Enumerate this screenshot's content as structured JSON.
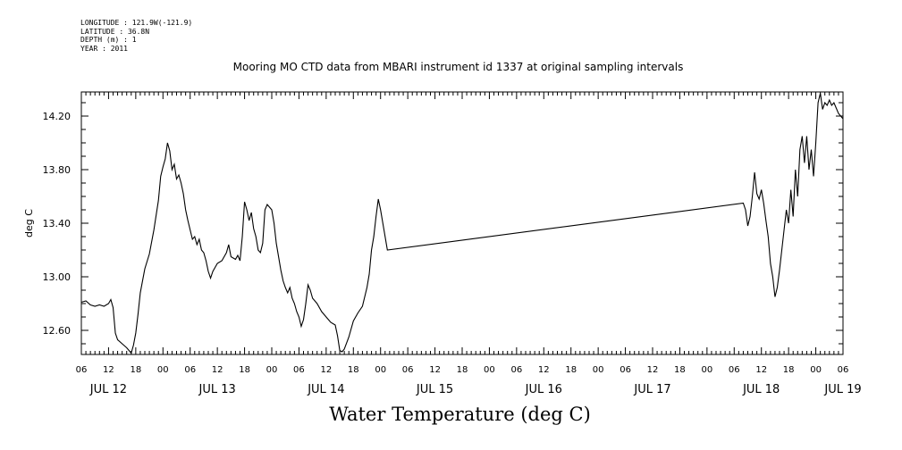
{
  "meta_lines": [
    "LONGITUDE : 121.9W(-121.9)",
    "LATITUDE : 36.8N",
    "DEPTH (m) : 1",
    "YEAR : 2011"
  ],
  "chart_data": {
    "type": "line",
    "title": "Mooring MO CTD data from MBARI instrument id 1337 at original sampling intervals",
    "xlabel": "Water Temperature (deg C)",
    "ylabel": "deg C",
    "x_range": [
      "2011-07-12T06:00",
      "2011-07-19T06:00"
    ],
    "ylim": [
      12.42,
      14.38
    ],
    "y_ticks": [
      12.6,
      13.0,
      13.4,
      13.8,
      14.2
    ],
    "y_tick_labels": [
      "12.60",
      "13.00",
      "13.40",
      "13.80",
      "14.20"
    ],
    "x_hour_ticks": [
      "2011-07-12T06:00",
      "2011-07-12T12:00",
      "2011-07-12T18:00",
      "2011-07-13T00:00",
      "2011-07-13T06:00",
      "2011-07-13T12:00",
      "2011-07-13T18:00",
      "2011-07-14T00:00",
      "2011-07-14T06:00",
      "2011-07-14T12:00",
      "2011-07-14T18:00",
      "2011-07-15T00:00",
      "2011-07-15T06:00",
      "2011-07-15T12:00",
      "2011-07-15T18:00",
      "2011-07-16T00:00",
      "2011-07-16T06:00",
      "2011-07-16T12:00",
      "2011-07-16T18:00",
      "2011-07-17T00:00",
      "2011-07-17T06:00",
      "2011-07-17T12:00",
      "2011-07-17T18:00",
      "2011-07-18T00:00",
      "2011-07-18T06:00",
      "2011-07-18T12:00",
      "2011-07-18T18:00",
      "2011-07-19T00:00",
      "2011-07-19T06:00"
    ],
    "x_hour_labels": [
      "06",
      "12",
      "18",
      "00",
      "06",
      "12",
      "18",
      "00",
      "06",
      "12",
      "18",
      "00",
      "06",
      "12",
      "18",
      "00",
      "06",
      "12",
      "18",
      "00",
      "06",
      "12",
      "18",
      "00",
      "06",
      "12",
      "18",
      "00",
      "06"
    ],
    "x_day_labels": [
      "JUL 12",
      "JUL 13",
      "JUL 14",
      "JUL 15",
      "JUL 16",
      "JUL 17",
      "JUL 18",
      "JUL 19"
    ],
    "x_day_label_times": [
      "2011-07-12T12:00",
      "2011-07-13T12:00",
      "2011-07-14T12:00",
      "2011-07-15T12:00",
      "2011-07-16T12:00",
      "2011-07-17T12:00",
      "2011-07-18T12:00",
      "2011-07-19T06:00"
    ],
    "series": [
      {
        "color": "#000000",
        "points": [
          [
            "2011-07-12T06:00",
            12.81
          ],
          [
            "2011-07-12T07:00",
            12.82
          ],
          [
            "2011-07-12T08:00",
            12.79
          ],
          [
            "2011-07-12T09:00",
            12.78
          ],
          [
            "2011-07-12T10:00",
            12.79
          ],
          [
            "2011-07-12T11:00",
            12.78
          ],
          [
            "2011-07-12T12:00",
            12.8
          ],
          [
            "2011-07-12T12:30",
            12.83
          ],
          [
            "2011-07-12T13:00",
            12.77
          ],
          [
            "2011-07-12T13:30",
            12.58
          ],
          [
            "2011-07-12T14:00",
            12.53
          ],
          [
            "2011-07-12T15:00",
            12.5
          ],
          [
            "2011-07-12T16:00",
            12.47
          ],
          [
            "2011-07-12T16:30",
            12.45
          ],
          [
            "2011-07-12T17:00",
            12.43
          ],
          [
            "2011-07-12T17:30",
            12.49
          ],
          [
            "2011-07-12T18:00",
            12.58
          ],
          [
            "2011-07-12T18:30",
            12.72
          ],
          [
            "2011-07-12T19:00",
            12.88
          ],
          [
            "2011-07-12T19:30",
            12.97
          ],
          [
            "2011-07-12T20:00",
            13.06
          ],
          [
            "2011-07-12T21:00",
            13.17
          ],
          [
            "2011-07-12T22:00",
            13.35
          ],
          [
            "2011-07-12T23:00",
            13.57
          ],
          [
            "2011-07-12T23:30",
            13.75
          ],
          [
            "2011-07-13T00:00",
            13.82
          ],
          [
            "2011-07-13T00:30",
            13.88
          ],
          [
            "2011-07-13T01:00",
            14.0
          ],
          [
            "2011-07-13T01:30",
            13.94
          ],
          [
            "2011-07-13T02:00",
            13.8
          ],
          [
            "2011-07-13T02:30",
            13.84
          ],
          [
            "2011-07-13T03:00",
            13.73
          ],
          [
            "2011-07-13T03:30",
            13.76
          ],
          [
            "2011-07-13T04:00",
            13.7
          ],
          [
            "2011-07-13T04:30",
            13.62
          ],
          [
            "2011-07-13T05:00",
            13.5
          ],
          [
            "2011-07-13T05:30",
            13.42
          ],
          [
            "2011-07-13T06:00",
            13.35
          ],
          [
            "2011-07-13T06:30",
            13.28
          ],
          [
            "2011-07-13T07:00",
            13.3
          ],
          [
            "2011-07-13T07:30",
            13.24
          ],
          [
            "2011-07-13T08:00",
            13.28
          ],
          [
            "2011-07-13T08:30",
            13.2
          ],
          [
            "2011-07-13T09:00",
            13.18
          ],
          [
            "2011-07-13T09:30",
            13.12
          ],
          [
            "2011-07-13T10:00",
            13.04
          ],
          [
            "2011-07-13T10:30",
            12.99
          ],
          [
            "2011-07-13T11:00",
            13.04
          ],
          [
            "2011-07-13T12:00",
            13.1
          ],
          [
            "2011-07-13T13:00",
            13.12
          ],
          [
            "2011-07-13T14:00",
            13.18
          ],
          [
            "2011-07-13T14:30",
            13.24
          ],
          [
            "2011-07-13T15:00",
            13.15
          ],
          [
            "2011-07-13T16:00",
            13.13
          ],
          [
            "2011-07-13T16:30",
            13.16
          ],
          [
            "2011-07-13T17:00",
            13.12
          ],
          [
            "2011-07-13T17:30",
            13.3
          ],
          [
            "2011-07-13T18:00",
            13.56
          ],
          [
            "2011-07-13T18:30",
            13.5
          ],
          [
            "2011-07-13T19:00",
            13.42
          ],
          [
            "2011-07-13T19:30",
            13.48
          ],
          [
            "2011-07-13T20:00",
            13.36
          ],
          [
            "2011-07-13T20:30",
            13.3
          ],
          [
            "2011-07-13T21:00",
            13.2
          ],
          [
            "2011-07-13T21:30",
            13.18
          ],
          [
            "2011-07-13T22:00",
            13.25
          ],
          [
            "2011-07-13T22:30",
            13.5
          ],
          [
            "2011-07-13T23:00",
            13.54
          ],
          [
            "2011-07-13T23:30",
            13.52
          ],
          [
            "2011-07-14T00:00",
            13.5
          ],
          [
            "2011-07-14T00:30",
            13.4
          ],
          [
            "2011-07-14T01:00",
            13.25
          ],
          [
            "2011-07-14T01:30",
            13.15
          ],
          [
            "2011-07-14T02:00",
            13.05
          ],
          [
            "2011-07-14T02:30",
            12.97
          ],
          [
            "2011-07-14T03:00",
            12.92
          ],
          [
            "2011-07-14T03:30",
            12.88
          ],
          [
            "2011-07-14T04:00",
            12.92
          ],
          [
            "2011-07-14T04:30",
            12.84
          ],
          [
            "2011-07-14T05:00",
            12.8
          ],
          [
            "2011-07-14T05:30",
            12.74
          ],
          [
            "2011-07-14T06:00",
            12.7
          ],
          [
            "2011-07-14T06:30",
            12.63
          ],
          [
            "2011-07-14T07:00",
            12.68
          ],
          [
            "2011-07-14T07:30",
            12.8
          ],
          [
            "2011-07-14T08:00",
            12.94
          ],
          [
            "2011-07-14T08:30",
            12.9
          ],
          [
            "2011-07-14T09:00",
            12.84
          ],
          [
            "2011-07-14T10:00",
            12.8
          ],
          [
            "2011-07-14T11:00",
            12.74
          ],
          [
            "2011-07-14T12:00",
            12.7
          ],
          [
            "2011-07-14T13:00",
            12.66
          ],
          [
            "2011-07-14T14:00",
            12.64
          ],
          [
            "2011-07-14T14:30",
            12.56
          ],
          [
            "2011-07-14T15:00",
            12.45
          ],
          [
            "2011-07-14T15:30",
            12.44
          ],
          [
            "2011-07-14T16:00",
            12.46
          ],
          [
            "2011-07-14T17:00",
            12.55
          ],
          [
            "2011-07-14T18:00",
            12.67
          ],
          [
            "2011-07-14T19:00",
            12.73
          ],
          [
            "2011-07-14T20:00",
            12.78
          ],
          [
            "2011-07-14T21:00",
            12.92
          ],
          [
            "2011-07-14T21:30",
            13.02
          ],
          [
            "2011-07-14T22:00",
            13.2
          ],
          [
            "2011-07-14T22:30",
            13.3
          ],
          [
            "2011-07-14T23:00",
            13.45
          ],
          [
            "2011-07-14T23:30",
            13.58
          ],
          [
            "2011-07-15T00:00",
            13.5
          ],
          [
            "2011-07-15T00:30",
            13.4
          ],
          [
            "2011-07-15T01:00",
            13.3
          ],
          [
            "2011-07-15T01:30",
            13.2
          ],
          [
            "2011-07-18T08:00",
            13.55
          ],
          [
            "2011-07-18T08:30",
            13.5
          ],
          [
            "2011-07-18T09:00",
            13.38
          ],
          [
            "2011-07-18T09:30",
            13.45
          ],
          [
            "2011-07-18T10:00",
            13.6
          ],
          [
            "2011-07-18T10:30",
            13.78
          ],
          [
            "2011-07-18T11:00",
            13.62
          ],
          [
            "2011-07-18T11:30",
            13.58
          ],
          [
            "2011-07-18T12:00",
            13.65
          ],
          [
            "2011-07-18T12:30",
            13.55
          ],
          [
            "2011-07-18T13:00",
            13.42
          ],
          [
            "2011-07-18T13:30",
            13.3
          ],
          [
            "2011-07-18T14:00",
            13.1
          ],
          [
            "2011-07-18T14:30",
            13.0
          ],
          [
            "2011-07-18T15:00",
            12.85
          ],
          [
            "2011-07-18T15:30",
            12.92
          ],
          [
            "2011-07-18T16:00",
            13.05
          ],
          [
            "2011-07-18T16:30",
            13.2
          ],
          [
            "2011-07-18T17:00",
            13.35
          ],
          [
            "2011-07-18T17:30",
            13.5
          ],
          [
            "2011-07-18T18:00",
            13.4
          ],
          [
            "2011-07-18T18:30",
            13.65
          ],
          [
            "2011-07-18T19:00",
            13.45
          ],
          [
            "2011-07-18T19:30",
            13.8
          ],
          [
            "2011-07-18T20:00",
            13.6
          ],
          [
            "2011-07-18T20:30",
            13.95
          ],
          [
            "2011-07-18T21:00",
            14.05
          ],
          [
            "2011-07-18T21:30",
            13.85
          ],
          [
            "2011-07-18T22:00",
            14.05
          ],
          [
            "2011-07-18T22:30",
            13.8
          ],
          [
            "2011-07-18T23:00",
            13.95
          ],
          [
            "2011-07-18T23:30",
            13.75
          ],
          [
            "2011-07-19T00:00",
            14.0
          ],
          [
            "2011-07-19T00:30",
            14.3
          ],
          [
            "2011-07-19T01:00",
            14.37
          ],
          [
            "2011-07-19T01:30",
            14.25
          ],
          [
            "2011-07-19T02:00",
            14.3
          ],
          [
            "2011-07-19T02:30",
            14.28
          ],
          [
            "2011-07-19T03:00",
            14.32
          ],
          [
            "2011-07-19T03:30",
            14.28
          ],
          [
            "2011-07-19T04:00",
            14.3
          ],
          [
            "2011-07-19T04:30",
            14.26
          ],
          [
            "2011-07-19T05:00",
            14.22
          ],
          [
            "2011-07-19T05:30",
            14.2
          ],
          [
            "2011-07-19T06:00",
            14.18
          ]
        ]
      }
    ],
    "grid": false,
    "legend": "none"
  }
}
